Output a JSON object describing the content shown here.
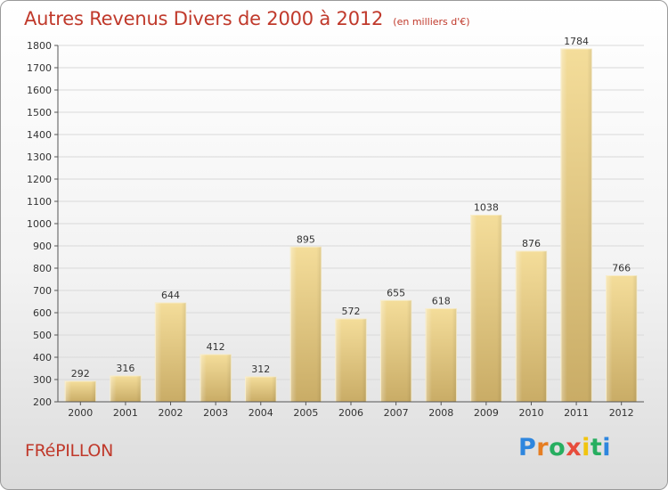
{
  "title": "Autres Revenus Divers de 2000 à 2012",
  "subtitle": "(en milliers d'€)",
  "commune": "FRéPILLON",
  "logo": {
    "letters": [
      "P",
      "r",
      "o",
      "x",
      "i",
      "t",
      "i"
    ],
    "colors": [
      "#2e86de",
      "#e67e22",
      "#27ae60",
      "#e74c3c",
      "#f1c40f",
      "#27ae60",
      "#2e86de"
    ]
  },
  "colors": {
    "title": "#c0392b",
    "bar_light": "#f4dd9a",
    "bar_dark": "#c9ac66"
  },
  "chart_data": {
    "type": "bar",
    "title": "Autres Revenus Divers de 2000 à 2012",
    "subtitle": "(en milliers d'€)",
    "categories": [
      "2000",
      "2001",
      "2002",
      "2003",
      "2004",
      "2005",
      "2006",
      "2007",
      "2008",
      "2009",
      "2010",
      "2011",
      "2012"
    ],
    "values": [
      292,
      316,
      644,
      412,
      312,
      895,
      572,
      655,
      618,
      1038,
      876,
      1784,
      766
    ],
    "ylim": [
      200,
      1800
    ],
    "yticks": [
      200,
      300,
      400,
      500,
      600,
      700,
      800,
      900,
      1000,
      1100,
      1200,
      1300,
      1400,
      1500,
      1600,
      1700,
      1800
    ],
    "grid": true,
    "legend": "none"
  }
}
